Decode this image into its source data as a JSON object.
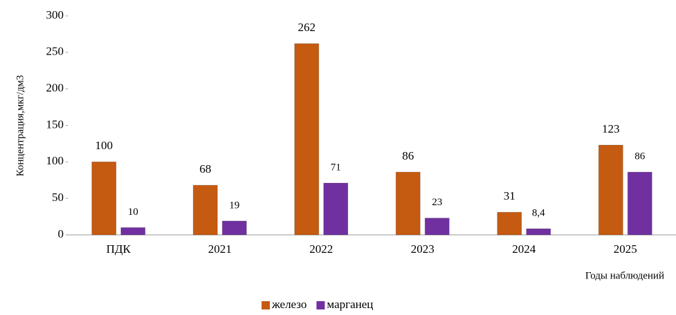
{
  "chart_data": {
    "type": "bar",
    "categories": [
      "ПДК",
      "2021",
      "2022",
      "2023",
      "2024",
      "2025"
    ],
    "series": [
      {
        "name": "железо",
        "color": "#c55a11",
        "values": [
          100,
          68,
          262,
          86,
          31,
          123
        ]
      },
      {
        "name": "марганец",
        "color": "#7030a0",
        "values": [
          10,
          19,
          71,
          23,
          8.4,
          86
        ],
        "value_labels": [
          "10",
          "19",
          "71",
          "23",
          "8,4",
          "86"
        ]
      }
    ],
    "ylim": [
      0,
      300
    ],
    "yticks": [
      0,
      50,
      100,
      150,
      200,
      250,
      300
    ],
    "y_label": "Концентрация,мкг/дм3",
    "x_label": "Годы наблюдений",
    "legend": "bottom",
    "grid": false
  }
}
